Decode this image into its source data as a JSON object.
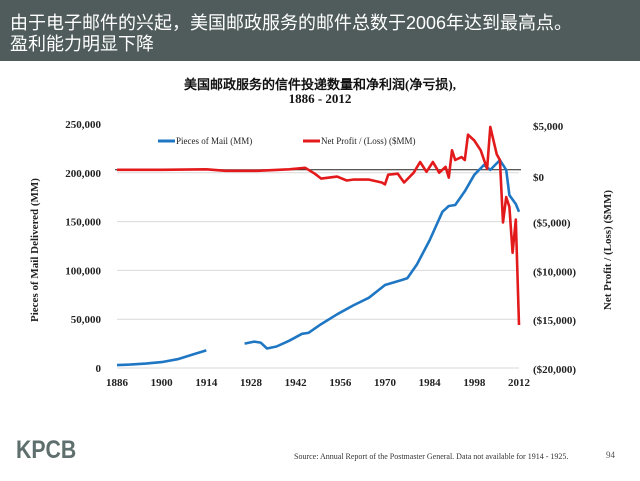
{
  "header": {
    "line1": "由于电子邮件的兴起，美国邮政服务的邮件总数于2006年达到最高点。",
    "line2": "盈利能力明显下降"
  },
  "chart_data": {
    "type": "line",
    "title": "美国邮政服务的信件投递数量和净利润(净亏损),",
    "subtitle": "1886 - 2012",
    "ylabel": "Pieces of Mail Delivered (MM)",
    "y2label": "Net Profit / (Loss) ($MM)",
    "ylim": [
      0,
      250000
    ],
    "y2lim": [
      -20000,
      5000
    ],
    "xlim": [
      1886,
      2012
    ],
    "x_ticks": [
      "1886",
      "1900",
      "1914",
      "1928",
      "1942",
      "1956",
      "1970",
      "1984",
      "1998",
      "2012"
    ],
    "y_ticks": [
      "250,000",
      "200,000",
      "150,000",
      "100,000",
      "50,000",
      "0"
    ],
    "y2_ticks": [
      "$5,000",
      "$0",
      "($5,000)",
      "($10,000)",
      "($15,000)",
      "($20,000)"
    ],
    "grid": true,
    "legend_position": "top",
    "series": [
      {
        "name": "Pieces of Mail (MM)",
        "color": "#1f77c4",
        "axis": "left",
        "points": [
          [
            1886,
            3000
          ],
          [
            1890,
            3500
          ],
          [
            1895,
            4500
          ],
          [
            1900,
            6000
          ],
          [
            1905,
            9000
          ],
          [
            1910,
            14000
          ],
          [
            1914,
            18000
          ],
          [
            1915,
            null
          ],
          [
            1925,
            null
          ],
          [
            1926,
            25000
          ],
          [
            1929,
            27000
          ],
          [
            1931,
            26000
          ],
          [
            1933,
            20000
          ],
          [
            1936,
            22000
          ],
          [
            1940,
            28000
          ],
          [
            1944,
            35000
          ],
          [
            1946,
            36000
          ],
          [
            1950,
            45000
          ],
          [
            1955,
            55000
          ],
          [
            1960,
            64000
          ],
          [
            1965,
            72000
          ],
          [
            1970,
            85000
          ],
          [
            1975,
            90000
          ],
          [
            1977,
            92000
          ],
          [
            1980,
            106000
          ],
          [
            1984,
            131000
          ],
          [
            1988,
            160000
          ],
          [
            1990,
            166000
          ],
          [
            1992,
            167000
          ],
          [
            1995,
            181000
          ],
          [
            1998,
            198000
          ],
          [
            2001,
            208000
          ],
          [
            2003,
            203000
          ],
          [
            2006,
            213000
          ],
          [
            2008,
            203000
          ],
          [
            2009,
            177000
          ],
          [
            2011,
            168000
          ],
          [
            2012,
            160000
          ]
        ]
      },
      {
        "name": "Net Profit / (Loss) ($MM)",
        "color": "#e31a1c",
        "axis": "right",
        "points": [
          [
            1886,
            0
          ],
          [
            1900,
            0
          ],
          [
            1914,
            50
          ],
          [
            1920,
            -100
          ],
          [
            1930,
            -100
          ],
          [
            1940,
            50
          ],
          [
            1945,
            200
          ],
          [
            1948,
            -400
          ],
          [
            1950,
            -900
          ],
          [
            1955,
            -700
          ],
          [
            1958,
            -1100
          ],
          [
            1960,
            -1000
          ],
          [
            1965,
            -1000
          ],
          [
            1969,
            -1300
          ],
          [
            1970,
            -1500
          ],
          [
            1971,
            -500
          ],
          [
            1974,
            -400
          ],
          [
            1976,
            -1300
          ],
          [
            1979,
            -300
          ],
          [
            1981,
            800
          ],
          [
            1983,
            -200
          ],
          [
            1985,
            800
          ],
          [
            1987,
            -300
          ],
          [
            1989,
            300
          ],
          [
            1990,
            -800
          ],
          [
            1991,
            2000
          ],
          [
            1992,
            1000
          ],
          [
            1994,
            1300
          ],
          [
            1995,
            1000
          ],
          [
            1996,
            3600
          ],
          [
            1998,
            3000
          ],
          [
            2000,
            2000
          ],
          [
            2002,
            100
          ],
          [
            2003,
            4400
          ],
          [
            2005,
            1600
          ],
          [
            2006,
            1000
          ],
          [
            2007,
            -5400
          ],
          [
            2008,
            -2800
          ],
          [
            2009,
            -3800
          ],
          [
            2010,
            -8500
          ],
          [
            2011,
            -5100
          ],
          [
            2012,
            -15900
          ]
        ]
      }
    ]
  },
  "footer": {
    "logo": "KPCB",
    "source": "Source: Annual Report of the Postmaster General. Data not available  for 1914 - 1925.",
    "page": "94"
  }
}
